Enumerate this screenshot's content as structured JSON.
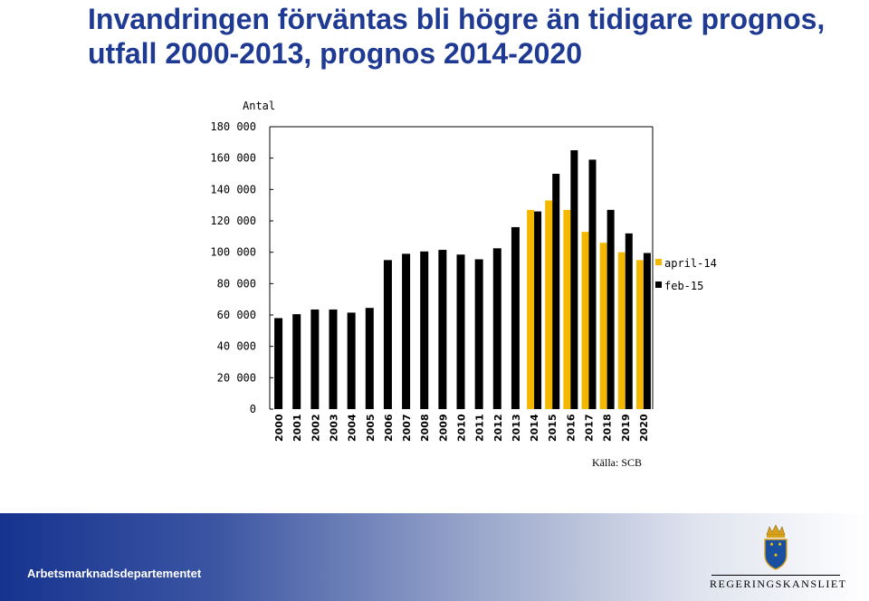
{
  "title": {
    "line1": "Invandringen förväntas bli högre än tidigare prognos,",
    "line2": "utfall 2000-2013, prognos 2014-2020"
  },
  "chart_data": {
    "type": "bar",
    "ylabel": "Antal",
    "ylim": [
      0,
      180000
    ],
    "yticks": [
      0,
      20000,
      40000,
      60000,
      80000,
      100000,
      120000,
      140000,
      160000,
      180000
    ],
    "ytick_labels": [
      "0",
      "20 000",
      "40 000",
      "60 000",
      "80 000",
      "100 000",
      "120 000",
      "140 000",
      "160 000",
      "180 000"
    ],
    "categories": [
      "2000",
      "2001",
      "2002",
      "2003",
      "2004",
      "2005",
      "2006",
      "2007",
      "2008",
      "2009",
      "2010",
      "2011",
      "2012",
      "2013",
      "2014",
      "2015",
      "2016",
      "2017",
      "2018",
      "2019",
      "2020"
    ],
    "series": [
      {
        "name": "april-14",
        "color": "#f5b800",
        "values": [
          null,
          null,
          null,
          null,
          null,
          null,
          null,
          null,
          null,
          null,
          null,
          null,
          null,
          null,
          127000,
          133000,
          127000,
          113000,
          106000,
          100000,
          95000
        ]
      },
      {
        "name": "feb-15",
        "color": "#000000",
        "values": [
          58000,
          60500,
          63500,
          63500,
          61500,
          64500,
          95000,
          99000,
          100500,
          101500,
          98500,
          95500,
          102500,
          116000,
          126000,
          150000,
          165000,
          159000,
          127000,
          112000,
          99500
        ]
      }
    ],
    "legend_position": "right",
    "grid": false
  },
  "source": "Källa: SCB",
  "footer": {
    "department": "Arbetsmarknadsdepartementet",
    "logo_text": "REGERINGSKANSLIET"
  },
  "colors": {
    "title": "#1f3a93",
    "footer_start": "#16338f"
  }
}
